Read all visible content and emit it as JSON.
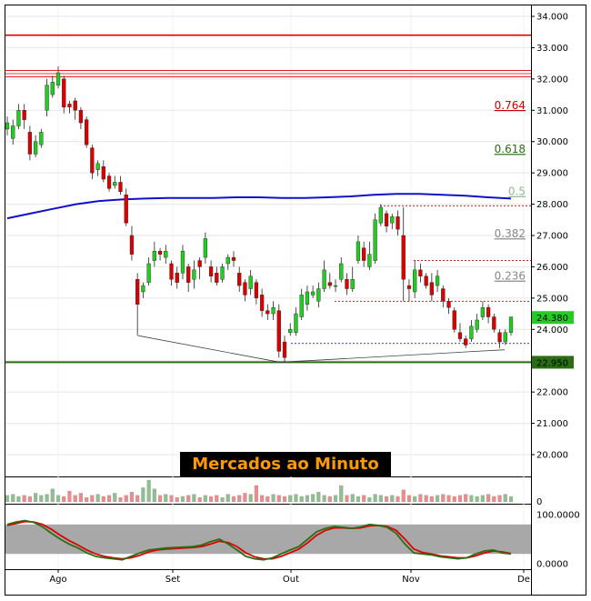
{
  "banner": "Mercados ao Minuto",
  "chart_data": {
    "type": "candlestick",
    "x_labels": [
      "Ago",
      "Set",
      "Out",
      "Nov",
      "De"
    ],
    "y_ticks": [
      "34.000",
      "33.000",
      "32.000",
      "31.000",
      "30.000",
      "29.000",
      "28.000",
      "27.000",
      "26.000",
      "25.000",
      "24.000",
      "23.000",
      "22.000",
      "21.000",
      "20.000"
    ],
    "ylim": [
      20.0,
      34.4
    ],
    "price_label": "24.380",
    "support_label": "22.950",
    "price_value": 24.38,
    "support_value": 22.95,
    "resistance_levels": [
      33.4,
      32.27,
      32.17,
      32.07
    ],
    "moving_average": [
      27.55,
      27.7,
      27.85,
      28.0,
      28.1,
      28.15,
      28.18,
      28.2,
      28.2,
      28.2,
      28.22,
      28.22,
      28.2,
      28.2,
      28.22,
      28.25,
      28.3,
      28.33,
      28.33,
      28.3,
      28.27,
      28.22,
      28.18
    ],
    "fibonacci": [
      {
        "label": "0.764",
        "value": 30.95,
        "color": "#cc0000"
      },
      {
        "label": "0.618",
        "value": 29.55,
        "color": "#2a6e14"
      },
      {
        "label": "0.5",
        "value": 28.2,
        "color": "#8fb98f"
      },
      {
        "label": "0.382",
        "value": 26.85,
        "color": "#888888"
      },
      {
        "label": "0.236",
        "value": 25.5,
        "color": "#888888"
      }
    ],
    "candles": [
      {
        "o": 30.4,
        "c": 30.6,
        "h": 30.8,
        "l": 30.2
      },
      {
        "o": 30.1,
        "c": 30.5,
        "h": 30.7,
        "l": 29.9
      },
      {
        "o": 30.5,
        "c": 31.0,
        "h": 31.2,
        "l": 30.4
      },
      {
        "o": 31.0,
        "c": 30.7,
        "h": 31.2,
        "l": 30.4
      },
      {
        "o": 30.3,
        "c": 29.6,
        "h": 30.5,
        "l": 29.4
      },
      {
        "o": 29.6,
        "c": 30.0,
        "h": 30.2,
        "l": 29.5
      },
      {
        "o": 29.9,
        "c": 30.3,
        "h": 30.4,
        "l": 29.8
      },
      {
        "o": 31.0,
        "c": 31.8,
        "h": 32.0,
        "l": 30.8
      },
      {
        "o": 31.5,
        "c": 31.9,
        "h": 32.1,
        "l": 31.4
      },
      {
        "o": 31.8,
        "c": 32.2,
        "h": 32.4,
        "l": 31.7
      },
      {
        "o": 32.0,
        "c": 31.1,
        "h": 32.1,
        "l": 30.9
      },
      {
        "o": 31.2,
        "c": 31.1,
        "h": 31.3,
        "l": 30.9
      },
      {
        "o": 31.3,
        "c": 31.0,
        "h": 31.4,
        "l": 30.7
      },
      {
        "o": 31.0,
        "c": 30.6,
        "h": 31.1,
        "l": 30.4
      },
      {
        "o": 30.7,
        "c": 29.9,
        "h": 30.8,
        "l": 29.8
      },
      {
        "o": 29.8,
        "c": 29.0,
        "h": 29.9,
        "l": 28.8
      },
      {
        "o": 29.1,
        "c": 29.3,
        "h": 29.4,
        "l": 28.9
      },
      {
        "o": 29.2,
        "c": 28.8,
        "h": 29.4,
        "l": 28.7
      },
      {
        "o": 28.9,
        "c": 28.5,
        "h": 29.0,
        "l": 28.4
      },
      {
        "o": 28.6,
        "c": 28.7,
        "h": 28.9,
        "l": 28.5
      },
      {
        "o": 28.7,
        "c": 28.4,
        "h": 28.9,
        "l": 28.3
      },
      {
        "o": 28.3,
        "c": 27.4,
        "h": 28.5,
        "l": 27.3
      },
      {
        "o": 27.0,
        "c": 26.4,
        "h": 27.3,
        "l": 26.2
      },
      {
        "o": 25.6,
        "c": 24.8,
        "h": 25.8,
        "l": 23.8
      },
      {
        "o": 25.2,
        "c": 25.4,
        "h": 25.5,
        "l": 25.0
      },
      {
        "o": 25.5,
        "c": 26.1,
        "h": 26.3,
        "l": 25.4
      },
      {
        "o": 26.2,
        "c": 26.5,
        "h": 26.8,
        "l": 26.0
      },
      {
        "o": 26.5,
        "c": 26.4,
        "h": 26.6,
        "l": 26.2
      },
      {
        "o": 26.3,
        "c": 26.5,
        "h": 26.7,
        "l": 26.1
      },
      {
        "o": 26.1,
        "c": 25.6,
        "h": 26.2,
        "l": 25.4
      },
      {
        "o": 25.8,
        "c": 25.5,
        "h": 26.0,
        "l": 25.3
      },
      {
        "o": 25.8,
        "c": 26.5,
        "h": 26.7,
        "l": 25.6
      },
      {
        "o": 26.0,
        "c": 25.5,
        "h": 26.1,
        "l": 25.2
      },
      {
        "o": 25.6,
        "c": 25.9,
        "h": 26.2,
        "l": 25.3
      },
      {
        "o": 26.2,
        "c": 26.0,
        "h": 26.3,
        "l": 25.6
      },
      {
        "o": 26.3,
        "c": 26.9,
        "h": 27.1,
        "l": 26.1
      },
      {
        "o": 26.0,
        "c": 25.7,
        "h": 26.2,
        "l": 25.5
      },
      {
        "o": 25.8,
        "c": 25.5,
        "h": 26.0,
        "l": 25.4
      },
      {
        "o": 25.6,
        "c": 26.0,
        "h": 26.1,
        "l": 25.5
      },
      {
        "o": 26.1,
        "c": 26.3,
        "h": 26.4,
        "l": 25.9
      },
      {
        "o": 26.3,
        "c": 26.2,
        "h": 26.5,
        "l": 26.0
      },
      {
        "o": 25.8,
        "c": 25.4,
        "h": 26.0,
        "l": 25.2
      },
      {
        "o": 25.5,
        "c": 25.1,
        "h": 25.6,
        "l": 24.9
      },
      {
        "o": 25.3,
        "c": 25.7,
        "h": 25.9,
        "l": 25.1
      },
      {
        "o": 25.5,
        "c": 25.0,
        "h": 25.6,
        "l": 24.8
      },
      {
        "o": 25.1,
        "c": 24.6,
        "h": 25.3,
        "l": 24.4
      },
      {
        "o": 24.6,
        "c": 24.5,
        "h": 24.8,
        "l": 24.3
      },
      {
        "o": 24.5,
        "c": 24.7,
        "h": 24.9,
        "l": 24.3
      },
      {
        "o": 24.6,
        "c": 23.3,
        "h": 24.8,
        "l": 23.1
      },
      {
        "o": 23.6,
        "c": 23.1,
        "h": 23.8,
        "l": 22.95
      },
      {
        "o": 23.9,
        "c": 24.0,
        "h": 24.2,
        "l": 23.8
      },
      {
        "o": 23.9,
        "c": 24.5,
        "h": 24.7,
        "l": 23.8
      },
      {
        "o": 24.4,
        "c": 25.1,
        "h": 25.3,
        "l": 24.3
      },
      {
        "o": 24.8,
        "c": 25.2,
        "h": 25.4,
        "l": 24.6
      },
      {
        "o": 25.1,
        "c": 25.2,
        "h": 25.4,
        "l": 25.0
      },
      {
        "o": 24.9,
        "c": 25.3,
        "h": 25.5,
        "l": 24.7
      },
      {
        "o": 25.3,
        "c": 25.9,
        "h": 26.2,
        "l": 25.2
      },
      {
        "o": 25.5,
        "c": 25.4,
        "h": 25.8,
        "l": 25.3
      },
      {
        "o": 25.4,
        "c": 25.4,
        "h": 25.6,
        "l": 25.2
      },
      {
        "o": 25.6,
        "c": 26.1,
        "h": 26.3,
        "l": 25.5
      },
      {
        "o": 25.6,
        "c": 25.3,
        "h": 25.8,
        "l": 25.1
      },
      {
        "o": 25.3,
        "c": 25.6,
        "h": 26.0,
        "l": 25.2
      },
      {
        "o": 26.2,
        "c": 26.8,
        "h": 27.0,
        "l": 26.1
      },
      {
        "o": 26.6,
        "c": 26.2,
        "h": 26.8,
        "l": 26.0
      },
      {
        "o": 26.0,
        "c": 26.4,
        "h": 26.8,
        "l": 25.9
      },
      {
        "o": 26.2,
        "c": 27.5,
        "h": 27.7,
        "l": 26.1
      },
      {
        "o": 27.4,
        "c": 27.9,
        "h": 28.0,
        "l": 27.3
      },
      {
        "o": 27.7,
        "c": 27.3,
        "h": 27.8,
        "l": 27.1
      },
      {
        "o": 27.4,
        "c": 27.6,
        "h": 27.7,
        "l": 27.2
      },
      {
        "o": 27.6,
        "c": 27.2,
        "h": 27.8,
        "l": 27.0
      },
      {
        "o": 27.0,
        "c": 25.6,
        "h": 27.9,
        "l": 24.9
      },
      {
        "o": 25.4,
        "c": 25.3,
        "h": 25.6,
        "l": 24.9
      },
      {
        "o": 25.2,
        "c": 25.9,
        "h": 26.2,
        "l": 25.0
      },
      {
        "o": 25.9,
        "c": 25.7,
        "h": 26.1,
        "l": 25.5
      },
      {
        "o": 25.7,
        "c": 25.4,
        "h": 25.8,
        "l": 25.3
      },
      {
        "o": 25.5,
        "c": 25.1,
        "h": 25.8,
        "l": 24.9
      },
      {
        "o": 25.4,
        "c": 25.7,
        "h": 25.9,
        "l": 25.2
      },
      {
        "o": 25.3,
        "c": 24.9,
        "h": 25.4,
        "l": 24.7
      },
      {
        "o": 24.9,
        "c": 24.7,
        "h": 25.0,
        "l": 24.5
      },
      {
        "o": 24.6,
        "c": 24.0,
        "h": 24.7,
        "l": 23.9
      },
      {
        "o": 23.9,
        "c": 23.7,
        "h": 24.2,
        "l": 23.6
      },
      {
        "o": 23.7,
        "c": 23.5,
        "h": 23.8,
        "l": 23.4
      },
      {
        "o": 23.7,
        "c": 24.1,
        "h": 24.3,
        "l": 23.6
      },
      {
        "o": 24.0,
        "c": 24.3,
        "h": 24.5,
        "l": 23.9
      },
      {
        "o": 24.4,
        "c": 24.7,
        "h": 24.9,
        "l": 24.3
      },
      {
        "o": 24.7,
        "c": 24.4,
        "h": 24.8,
        "l": 24.2
      },
      {
        "o": 24.4,
        "c": 24.0,
        "h": 24.5,
        "l": 23.9
      },
      {
        "o": 23.9,
        "c": 23.6,
        "h": 24.0,
        "l": 23.4
      },
      {
        "o": 23.6,
        "c": 23.9,
        "h": 24.0,
        "l": 23.5
      },
      {
        "o": 23.9,
        "c": 24.4,
        "h": 24.4,
        "l": 23.8
      }
    ],
    "volume": [
      0.3,
      0.35,
      0.25,
      0.3,
      0.25,
      0.4,
      0.3,
      0.35,
      0.6,
      0.3,
      0.25,
      0.5,
      0.3,
      0.4,
      0.2,
      0.3,
      0.35,
      0.25,
      0.3,
      0.4,
      0.2,
      0.3,
      0.45,
      0.3,
      0.65,
      1.0,
      0.6,
      0.3,
      0.35,
      0.3,
      0.2,
      0.25,
      0.3,
      0.35,
      0.2,
      0.3,
      0.25,
      0.3,
      0.2,
      0.35,
      0.25,
      0.3,
      0.4,
      0.35,
      0.75,
      0.3,
      0.25,
      0.35,
      0.3,
      0.25,
      0.3,
      0.35,
      0.25,
      0.3,
      0.35,
      0.45,
      0.3,
      0.25,
      0.3,
      0.75,
      0.3,
      0.35,
      0.25,
      0.3,
      0.2,
      0.35,
      0.3,
      0.25,
      0.3,
      0.25,
      0.55,
      0.3,
      0.25,
      0.35,
      0.3,
      0.25,
      0.3,
      0.35,
      0.3,
      0.25,
      0.3,
      0.35,
      0.3,
      0.25,
      0.3,
      0.35,
      0.25,
      0.3,
      0.35,
      0.25
    ],
    "oscillator": {
      "y_ticks": [
        "100.0000",
        "0.0000"
      ],
      "band": [
        20,
        80
      ],
      "k": [
        80,
        85,
        88,
        84,
        75,
        62,
        50,
        40,
        32,
        22,
        15,
        12,
        10,
        8,
        15,
        22,
        28,
        30,
        32,
        33,
        34,
        35,
        38,
        45,
        50,
        40,
        28,
        15,
        10,
        8,
        12,
        20,
        28,
        35,
        50,
        65,
        72,
        76,
        74,
        72,
        75,
        80,
        78,
        74,
        62,
        40,
        22,
        20,
        18,
        14,
        12,
        10,
        12,
        20,
        26,
        28,
        22,
        20
      ],
      "d": [
        78,
        82,
        86,
        85,
        80,
        70,
        58,
        47,
        38,
        28,
        20,
        15,
        12,
        10,
        12,
        17,
        24,
        28,
        30,
        31,
        32,
        33,
        35,
        40,
        46,
        43,
        35,
        22,
        14,
        10,
        10,
        15,
        22,
        30,
        43,
        58,
        68,
        73,
        73,
        72,
        73,
        77,
        78,
        76,
        68,
        50,
        30,
        23,
        20,
        16,
        14,
        12,
        12,
        16,
        22,
        26,
        24,
        21
      ],
      "k_color": "#2a6e14",
      "d_color": "#dd0000"
    }
  }
}
